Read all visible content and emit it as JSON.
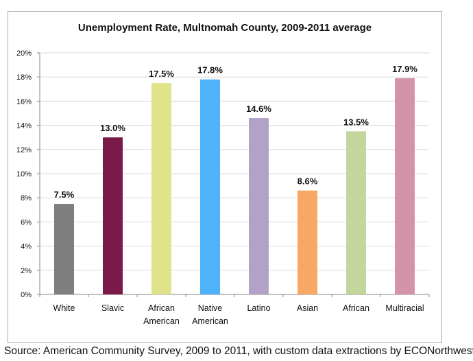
{
  "chart_data": {
    "type": "bar",
    "title": "Unemployment Rate, Multnomah County, 2009-2011 average",
    "categories": [
      "White",
      "Slavic",
      "African American",
      "Native American",
      "Latino",
      "Asian",
      "African",
      "Multiracial"
    ],
    "category_lines": [
      [
        "White"
      ],
      [
        "Slavic"
      ],
      [
        "African",
        "American"
      ],
      [
        "Native",
        "American"
      ],
      [
        "Latino"
      ],
      [
        "Asian"
      ],
      [
        "African"
      ],
      [
        "Multiracial"
      ]
    ],
    "values": [
      7.5,
      13.0,
      17.5,
      17.8,
      14.6,
      8.6,
      13.5,
      17.9
    ],
    "data_labels": [
      "7.5%",
      "13.0%",
      "17.5%",
      "17.8%",
      "14.6%",
      "8.6%",
      "13.5%",
      "17.9%"
    ],
    "colors": [
      "#7f7f7f",
      "#7a1a48",
      "#e0e38a",
      "#4fb3fb",
      "#b3a2c8",
      "#f8a863",
      "#c3d69b",
      "#d593a7"
    ],
    "xlabel": "",
    "ylabel": "",
    "ylim": [
      0,
      20
    ],
    "yticks": [
      0,
      2,
      4,
      6,
      8,
      10,
      12,
      14,
      16,
      18,
      20
    ],
    "ytick_labels": [
      "0%",
      "2%",
      "4%",
      "6%",
      "8%",
      "10%",
      "12%",
      "14%",
      "16%",
      "18%",
      "20%"
    ],
    "grid": true,
    "legend": "none"
  },
  "source": "Source: American Community Survey, 2009 to 2011, with custom data extractions by ECONorthwest"
}
